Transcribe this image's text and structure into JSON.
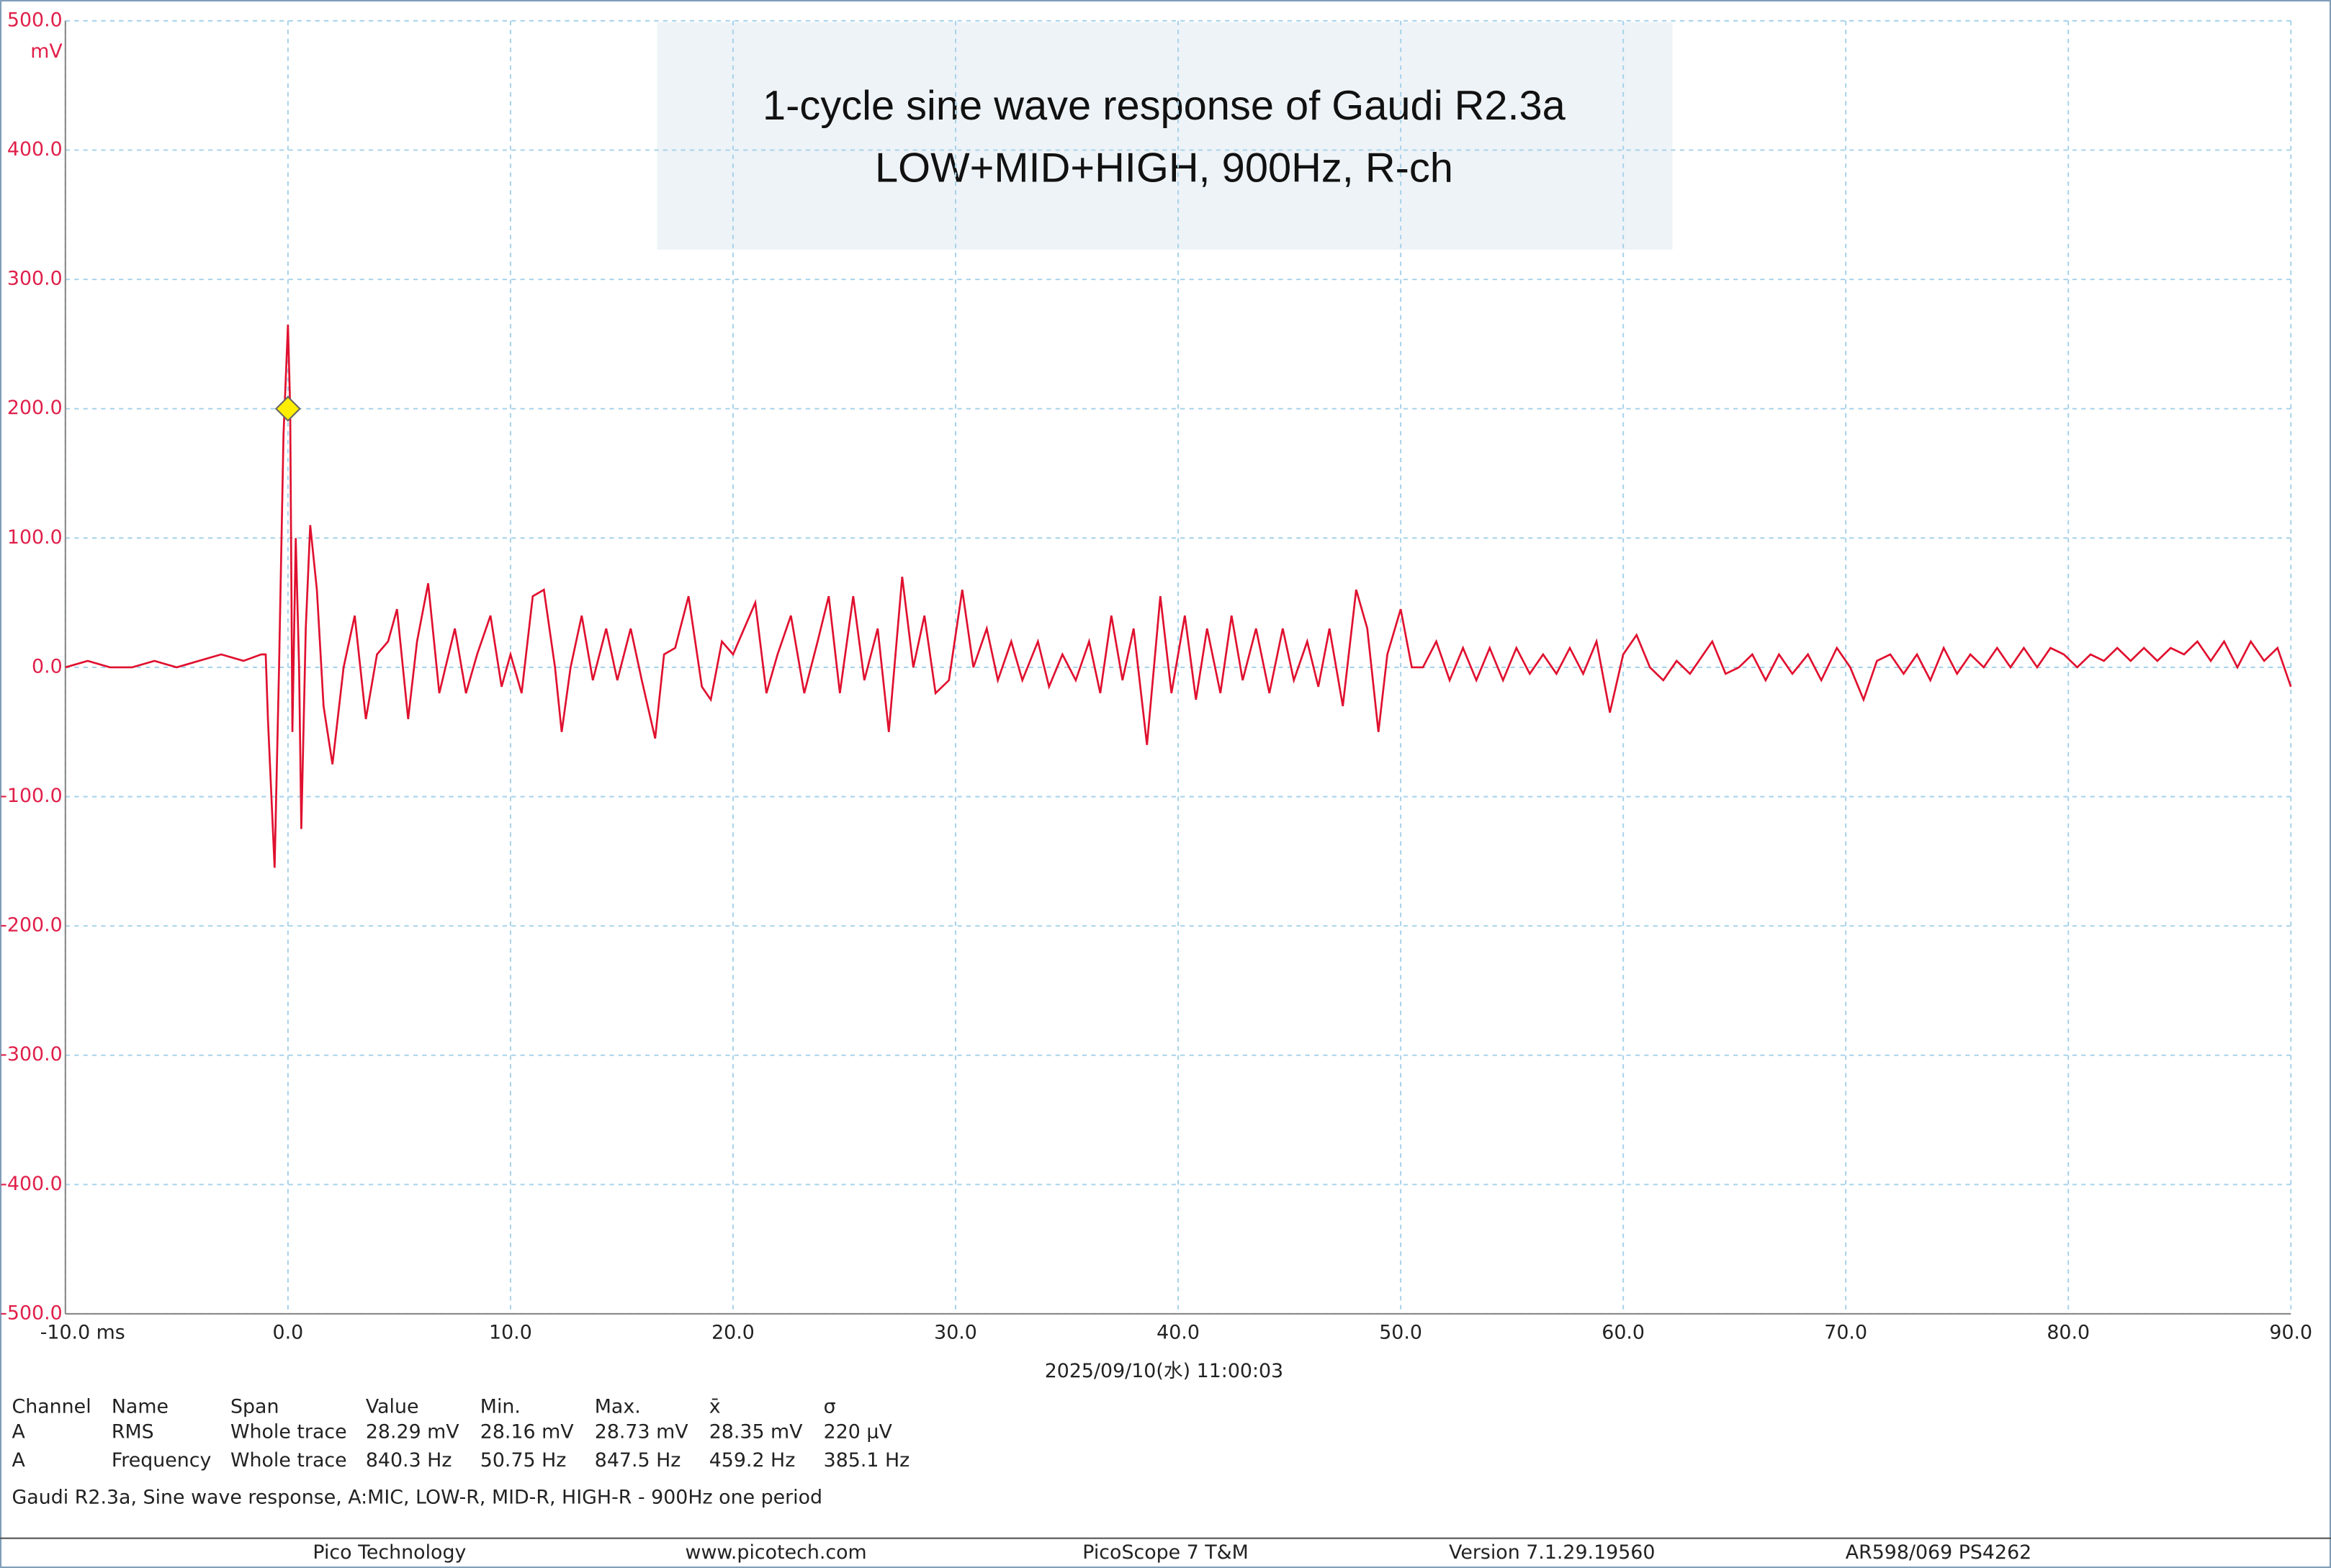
{
  "chart_data": {
    "type": "line",
    "title": [
      "1-cycle sine wave response of Gaudi R2.3a",
      "LOW+MID+HIGH, 900Hz, R-ch"
    ],
    "y_unit": "mV",
    "timestamp": "2025/09/10(水) 11:00:03",
    "x": [
      -10,
      -9,
      -8,
      -7,
      -6,
      -5,
      -4,
      -3,
      -2,
      -1.2,
      -1,
      -0.9,
      -0.6,
      -0.4,
      -0.2,
      0,
      0.1,
      0.2,
      0.35,
      0.5,
      0.6,
      0.8,
      1,
      1.3,
      1.6,
      2,
      2.5,
      3,
      3.5,
      4,
      4.5,
      4.9,
      5.4,
      5.8,
      6.3,
      6.8,
      7.5,
      8,
      8.5,
      9.1,
      9.6,
      10,
      10.5,
      11,
      11.5,
      12,
      12.3,
      12.7,
      13.2,
      13.7,
      14.3,
      14.8,
      15.4,
      15.9,
      16.5,
      16.9,
      17.4,
      18,
      18.6,
      19,
      19.5,
      20,
      20.5,
      21,
      21.5,
      22,
      22.6,
      23.2,
      23.8,
      24.3,
      24.8,
      25.4,
      25.9,
      26.5,
      27,
      27.6,
      28.1,
      28.6,
      29.1,
      29.7,
      30.3,
      30.8,
      31.4,
      31.9,
      32.5,
      33,
      33.7,
      34.2,
      34.8,
      35.4,
      36,
      36.5,
      37,
      37.5,
      38,
      38.6,
      39.2,
      39.7,
      40.3,
      40.8,
      41.3,
      41.9,
      42.4,
      42.9,
      43.5,
      44.1,
      44.7,
      45.2,
      45.8,
      46.3,
      46.8,
      47.4,
      48,
      48.5,
      49,
      49.4,
      50,
      50.5,
      51,
      51.6,
      52.2,
      52.8,
      53.4,
      54,
      54.6,
      55.2,
      55.8,
      56.4,
      57,
      57.6,
      58.2,
      58.8,
      59.4,
      60,
      60.6,
      61.2,
      61.8,
      62.4,
      63,
      64,
      64.6,
      65.2,
      65.8,
      66.4,
      67,
      67.6,
      68.3,
      68.9,
      69.6,
      70.2,
      70.8,
      71.4,
      72,
      72.6,
      73.2,
      73.8,
      74.4,
      75,
      75.6,
      76.2,
      76.8,
      77.4,
      78,
      78.6,
      79.2,
      79.8,
      80.4,
      81,
      81.6,
      82.2,
      82.8,
      83.4,
      84,
      84.6,
      85.2,
      85.8,
      86.4,
      87,
      87.6,
      88.2,
      88.8,
      89.4,
      90
    ],
    "series": [
      {
        "name": "A",
        "color": "#e0102f",
        "values": [
          0,
          5,
          0,
          0,
          5,
          0,
          5,
          10,
          5,
          10,
          10,
          -40,
          -155,
          0,
          180,
          265,
          200,
          -50,
          100,
          0,
          -125,
          30,
          110,
          60,
          -30,
          -75,
          0,
          40,
          -40,
          10,
          20,
          45,
          -40,
          20,
          65,
          -20,
          30,
          -20,
          10,
          40,
          -15,
          10,
          -20,
          55,
          60,
          0,
          -50,
          0,
          40,
          -10,
          30,
          -10,
          30,
          -10,
          -55,
          10,
          15,
          55,
          -15,
          -25,
          20,
          10,
          30,
          50,
          -20,
          10,
          40,
          -20,
          20,
          55,
          -20,
          55,
          -10,
          30,
          -50,
          70,
          0,
          40,
          -20,
          -10,
          60,
          0,
          30,
          -10,
          20,
          -10,
          20,
          -15,
          10,
          -10,
          20,
          -20,
          40,
          -10,
          30,
          -60,
          55,
          -20,
          40,
          -25,
          30,
          -20,
          40,
          -10,
          30,
          -20,
          30,
          -10,
          20,
          -15,
          30,
          -30,
          60,
          30,
          -50,
          10,
          45,
          0,
          0,
          20,
          -10,
          15,
          -10,
          15,
          -10,
          15,
          -5,
          10,
          -5,
          15,
          -5,
          20,
          -35,
          10,
          25,
          0,
          -10,
          5,
          -5,
          20,
          -5,
          0,
          10,
          -10,
          10,
          -5,
          10,
          -10,
          15,
          0,
          -25,
          5,
          10,
          -5,
          10,
          -10,
          15,
          -5,
          10,
          0,
          15,
          0,
          15,
          0,
          15,
          10,
          0,
          10,
          5,
          15,
          5,
          15,
          5,
          15,
          10,
          20,
          5,
          20,
          0,
          20,
          5,
          15,
          -15
        ]
      }
    ],
    "xlim": [
      -10,
      90
    ],
    "ylim": [
      -500,
      500
    ],
    "xticks": [
      {
        "value": -10,
        "label": "-10.0 ms"
      },
      {
        "value": 0,
        "label": "0.0"
      },
      {
        "value": 10,
        "label": "10.0"
      },
      {
        "value": 20,
        "label": "20.0"
      },
      {
        "value": 30,
        "label": "30.0"
      },
      {
        "value": 40,
        "label": "40.0"
      },
      {
        "value": 50,
        "label": "50.0"
      },
      {
        "value": 60,
        "label": "60.0"
      },
      {
        "value": 70,
        "label": "70.0"
      },
      {
        "value": 80,
        "label": "80.0"
      },
      {
        "value": 90,
        "label": "90.0"
      }
    ],
    "yticks": [
      {
        "value": -500,
        "label": "-500.0"
      },
      {
        "value": -400,
        "label": "-400.0"
      },
      {
        "value": -300,
        "label": "-300.0"
      },
      {
        "value": -200,
        "label": "-200.0"
      },
      {
        "value": -100,
        "label": "-100.0"
      },
      {
        "value": 0,
        "label": "0.0"
      },
      {
        "value": 100,
        "label": "100.0"
      },
      {
        "value": 200,
        "label": "200.0"
      },
      {
        "value": 300,
        "label": "300.0"
      },
      {
        "value": 400,
        "label": "400.0"
      },
      {
        "value": 500,
        "label": "500.0"
      }
    ],
    "grid": true,
    "marker": {
      "x": 0,
      "y": 200,
      "color": "#ffee00"
    }
  },
  "measurements": {
    "columns": [
      "Channel",
      "Name",
      "Span",
      "Value",
      "Min.",
      "Max.",
      "x̄",
      "σ"
    ],
    "rows": [
      [
        "A",
        "RMS",
        "Whole trace",
        "28.29 mV",
        "28.16 mV",
        "28.73 mV",
        "28.35 mV",
        "220 µV"
      ],
      [
        "A",
        "Frequency",
        "Whole trace",
        "840.3 Hz",
        "50.75 Hz",
        "847.5 Hz",
        "459.2 Hz",
        "385.1 Hz"
      ]
    ]
  },
  "notes": "Gaudi R2.3a, Sine wave response, A:MIC, LOW-R, MID-R, HIGH-R - 900Hz one period",
  "footer": [
    "Pico Technology",
    "www.picotech.com",
    "PicoScope 7 T&M",
    "Version 7.1.29.19560",
    "AR598/069 PS4262"
  ]
}
